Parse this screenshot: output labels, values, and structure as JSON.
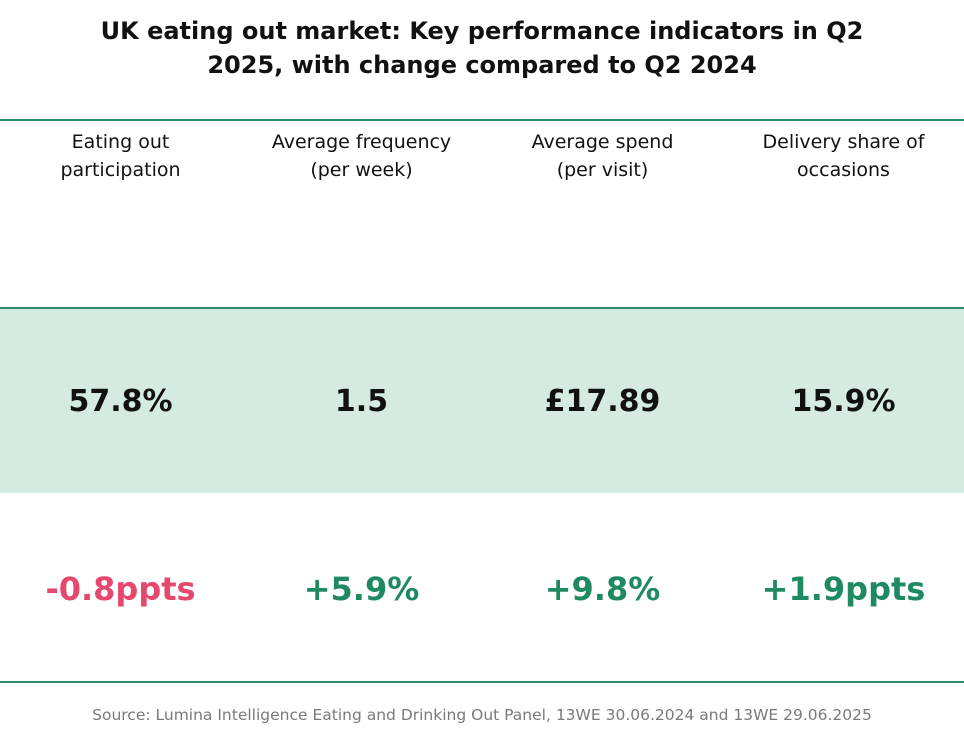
{
  "title": "UK eating out market: Key performance indicators in Q2 2025, with change compared to Q2 2024",
  "table": {
    "headers": [
      "Eating out\nparticipation",
      "Average frequency\n(per week)",
      "Average spend\n(per visit)",
      "Delivery share of\noccasions"
    ],
    "values": [
      "57.8%",
      "1.5",
      "£17.89",
      "15.9%"
    ],
    "changes": [
      {
        "text": "-0.8ppts",
        "color": "#e5486c"
      },
      {
        "text": "+5.9%",
        "color": "#1f8a5f"
      },
      {
        "text": "+9.8%",
        "color": "#1f8a5f"
      },
      {
        "text": "+1.9ppts",
        "color": "#1f8a5f"
      }
    ]
  },
  "source": "Source: Lumina Intelligence Eating and Drinking Out Panel, 13WE 30.06.2024 and 13WE 29.06.2025"
}
